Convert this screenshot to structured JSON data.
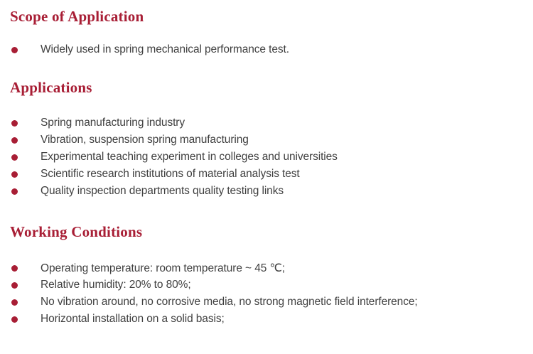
{
  "theme": {
    "accent_color": "#a81e35",
    "body_text_color": "#3f3f3f",
    "background_color": "#ffffff"
  },
  "sections": [
    {
      "title": "Scope of Application",
      "items": [
        "Widely used in spring mechanical performance test."
      ]
    },
    {
      "title": "Applications",
      "items": [
        "Spring manufacturing industry",
        "Vibration, suspension spring manufacturing",
        "Experimental teaching experiment in colleges and universities",
        "Scientific research institutions of material analysis test",
        "Quality inspection departments quality testing links"
      ]
    },
    {
      "title": "Working Conditions",
      "items": [
        "Operating temperature: room temperature ~ 45 ℃;",
        "Relative humidity: 20% to 80%;",
        "No vibration around, no corrosive media, no strong magnetic field interference;",
        "Horizontal installation on a solid basis;"
      ]
    }
  ]
}
